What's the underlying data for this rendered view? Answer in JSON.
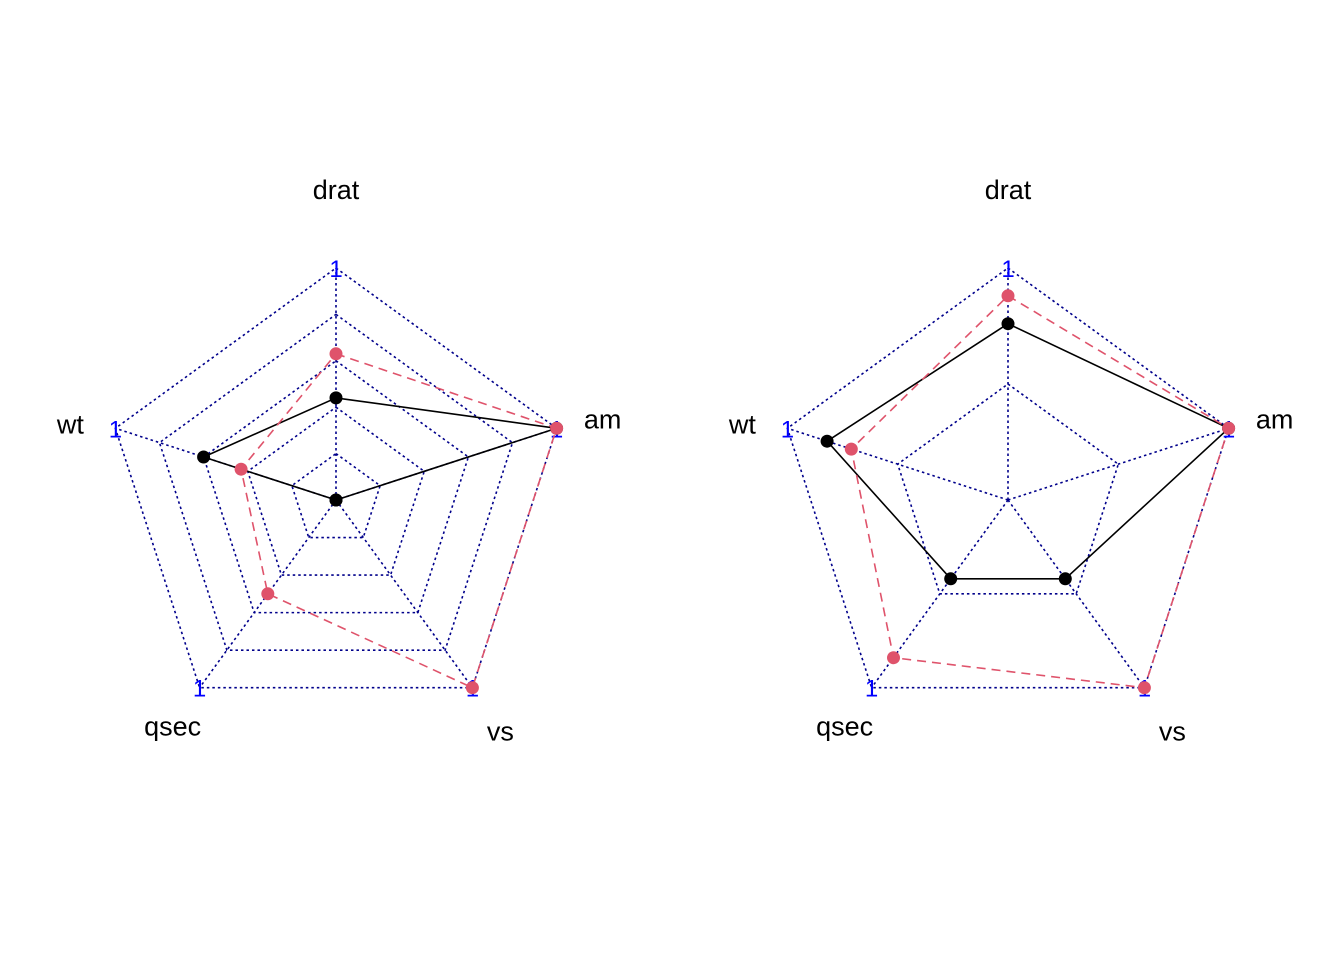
{
  "chart_data": [
    {
      "type": "radar",
      "axes": [
        "drat",
        "am",
        "vs",
        "qsec",
        "wt"
      ],
      "axis_max_label": "1",
      "grid_levels": 5,
      "range": [
        0,
        1
      ],
      "series": [
        {
          "values": [
            0.44,
            1.0,
            0.0,
            0.0,
            0.6
          ],
          "color": "#000000",
          "line": "solid"
        },
        {
          "values": [
            0.63,
            1.0,
            1.0,
            0.5,
            0.43
          ],
          "color": "#DF536B",
          "line": "dashed"
        }
      ]
    },
    {
      "type": "radar",
      "axes": [
        "drat",
        "am",
        "vs",
        "qsec",
        "wt"
      ],
      "axis_max_label": "1",
      "grid_levels": 2,
      "range": [
        0,
        1
      ],
      "series": [
        {
          "values": [
            0.76,
            1.0,
            0.42,
            0.42,
            0.82
          ],
          "color": "#000000",
          "line": "solid"
        },
        {
          "values": [
            0.88,
            1.0,
            1.0,
            0.84,
            0.71
          ],
          "color": "#DF536B",
          "line": "dashed"
        }
      ]
    }
  ],
  "colors": {
    "grid": "#00008B",
    "axis_tick": "#0000FF"
  }
}
